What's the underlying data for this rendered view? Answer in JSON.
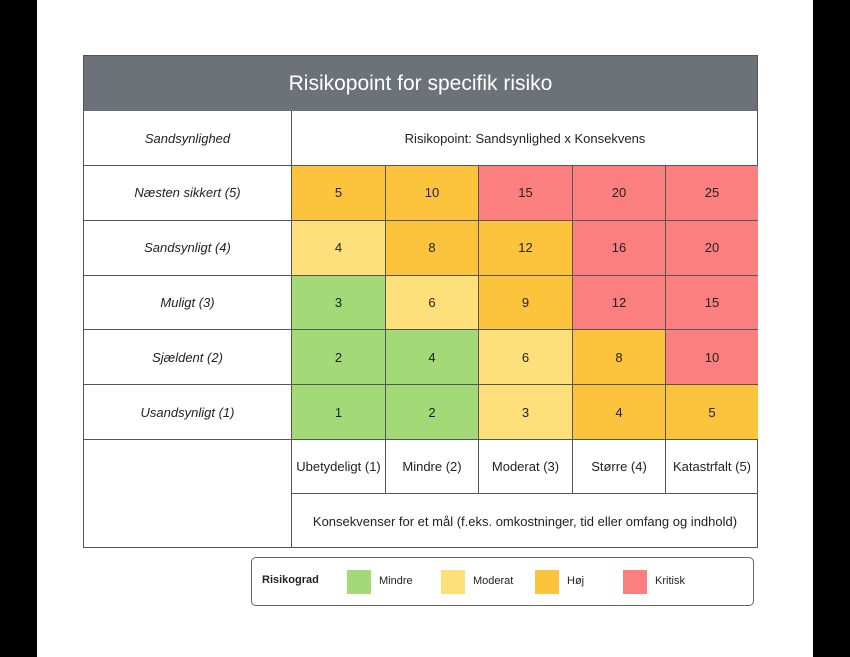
{
  "title": "Risikopoint for specifik risiko",
  "header": {
    "row_axis": "Sandsynlighed",
    "formula": "Risikopoint: Sandsynlighed x Konsekvens"
  },
  "rows": [
    {
      "label": "Næsten sikkert (5)",
      "values": [
        "5",
        "10",
        "15",
        "20",
        "25"
      ],
      "levels": [
        "orange",
        "orange",
        "red",
        "red",
        "red"
      ]
    },
    {
      "label": "Sandsynligt (4)",
      "values": [
        "4",
        "8",
        "12",
        "16",
        "20"
      ],
      "levels": [
        "yellow",
        "orange",
        "orange",
        "red",
        "red"
      ]
    },
    {
      "label": "Muligt (3)",
      "values": [
        "3",
        "6",
        "9",
        "12",
        "15"
      ],
      "levels": [
        "green",
        "yellow",
        "orange",
        "red",
        "red"
      ]
    },
    {
      "label": "Sjældent (2)",
      "values": [
        "2",
        "4",
        "6",
        "8",
        "10"
      ],
      "levels": [
        "green",
        "green",
        "yellow",
        "orange",
        "red"
      ]
    },
    {
      "label": "Usandsynligt (1)",
      "values": [
        "1",
        "2",
        "3",
        "4",
        "5"
      ],
      "levels": [
        "green",
        "green",
        "yellow",
        "orange",
        "orange"
      ]
    }
  ],
  "columns": [
    "Ubetydeligt (1)",
    "Mindre (2)",
    "Moderat (3)",
    "Større (4)",
    "Katastrfalt (5)"
  ],
  "footer": "Konsekvenser for et mål (f.eks. omkostninger, tid eller omfang og indhold)",
  "legend": {
    "title": "Risikograd",
    "items": [
      {
        "label": "Mindre",
        "color": "#a3d977"
      },
      {
        "label": "Moderat",
        "color": "#fde07a"
      },
      {
        "label": "Høj",
        "color": "#fbc43c"
      },
      {
        "label": "Kritisk",
        "color": "#fc7f7f"
      }
    ]
  }
}
